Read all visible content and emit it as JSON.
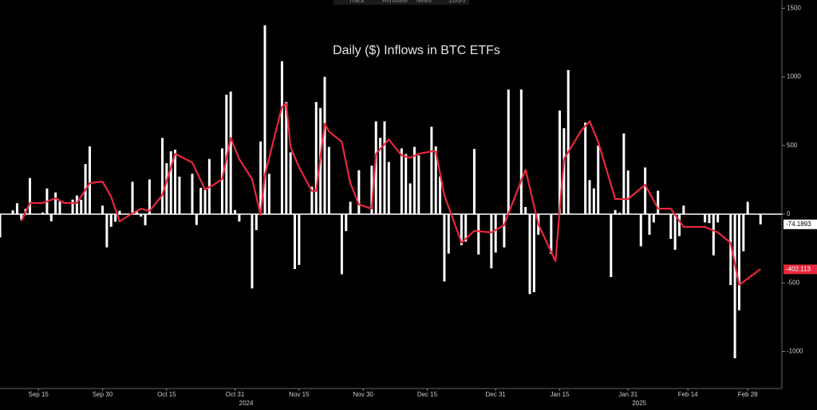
{
  "chart_data": {
    "type": "bar",
    "title": "Daily ($) Inflows in BTC ETFs",
    "toolbar": [
      "Track",
      "Annotate",
      "News",
      "Zoom"
    ],
    "xlim": [
      6,
      189
    ],
    "xticks": [
      {
        "value": 15,
        "label": "Sep 15"
      },
      {
        "value": 30,
        "label": "Sep 30"
      },
      {
        "value": 45,
        "label": "Oct 15"
      },
      {
        "value": 61,
        "label": "Oct 31"
      },
      {
        "value": 76,
        "label": "Nov 15"
      },
      {
        "value": 91,
        "label": "Nov 30"
      },
      {
        "value": 106,
        "label": "Dec 15"
      },
      {
        "value": 122,
        "label": "Dec 31"
      },
      {
        "value": 137,
        "label": "Jan 15"
      },
      {
        "value": 153,
        "label": "Jan 31"
      },
      {
        "value": 167,
        "label": "Feb 14"
      },
      {
        "value": 181,
        "label": "Feb 28"
      }
    ],
    "xsublabels": [
      {
        "value": 61,
        "label": "2024"
      },
      {
        "value": 153,
        "label": "2025"
      }
    ],
    "ylim": [
      -1270,
      1560
    ],
    "yticks": [
      -1000,
      -500,
      0,
      500,
      1000,
      1500
    ],
    "series": [
      {
        "type": "bar",
        "color": "#ffffff",
        "last_value": -74.1893,
        "x": [
          6,
          9,
          10,
          11,
          12,
          13,
          16,
          17,
          18,
          19,
          20,
          23,
          24,
          25,
          26,
          27,
          30,
          31,
          32,
          33,
          34,
          37,
          38,
          39,
          40,
          41,
          44,
          45,
          46,
          47,
          48,
          51,
          52,
          53,
          54,
          55,
          58,
          59,
          60,
          61,
          62,
          65,
          66,
          67,
          68,
          69,
          72,
          73,
          74,
          75,
          76,
          79,
          80,
          81,
          82,
          83,
          86,
          87,
          88,
          90,
          93,
          94,
          95,
          96,
          97,
          100,
          101,
          102,
          103,
          104,
          107,
          108,
          109,
          110,
          111,
          114,
          115,
          117,
          118,
          121,
          122,
          124,
          125,
          128,
          129,
          130,
          131,
          132,
          135,
          136,
          137,
          138,
          139,
          143,
          144,
          145,
          146,
          149,
          150,
          151,
          152,
          153,
          156,
          157,
          158,
          159,
          160,
          163,
          164,
          165,
          166,
          171,
          172,
          173,
          174,
          177,
          178,
          179,
          180,
          181,
          184
        ],
        "values": [
          -170,
          28,
          80,
          -40,
          39,
          263,
          12,
          187,
          -52,
          158,
          92,
          106,
          136,
          105,
          365,
          494,
          62,
          -242,
          -92,
          -55,
          25,
          236,
          28,
          -18,
          -81,
          253,
          555,
          371,
          458,
          470,
          273,
          294,
          -79,
          192,
          188,
          402,
          479,
          870,
          893,
          30,
          -54,
          -541,
          -116,
          530,
          1376,
          294,
          1114,
          817,
          450,
          -400,
          -370,
          200,
          817,
          773,
          1000,
          490,
          -438,
          -123,
          90,
          320,
          353,
          676,
          556,
          676,
          380,
          479,
          438,
          224,
          490,
          428,
          637,
          494,
          275,
          -490,
          -287,
          -226,
          -200,
          475,
          -294,
          -395,
          -280,
          -242,
          908,
          908,
          52,
          -582,
          -568,
          -150,
          -290,
          5,
          755,
          626,
          1050,
          667,
          248,
          188,
          500,
          -458,
          30,
          10,
          588,
          318,
          -234,
          340,
          -150,
          -60,
          171,
          -180,
          -260,
          -160,
          62,
          -60,
          -65,
          -300,
          -60,
          -516,
          -1050,
          -700,
          -270,
          90,
          -74
        ]
      },
      {
        "type": "line",
        "color": "#e8283c",
        "last_value": -402.113,
        "x": [
          11,
          13,
          16,
          19,
          21,
          24,
          27,
          30,
          32,
          34,
          37,
          39,
          41,
          44,
          47,
          51,
          54,
          56,
          58,
          60,
          62,
          65,
          67,
          68,
          72,
          73,
          74,
          76,
          79,
          80,
          82,
          83,
          86,
          88,
          90,
          93,
          94,
          97,
          100,
          102,
          104,
          107,
          108,
          110,
          114,
          117,
          121,
          124,
          125,
          129,
          132,
          136,
          138,
          142,
          144,
          146,
          150,
          153,
          157,
          160,
          163,
          166,
          171,
          174,
          177,
          179,
          181,
          184
        ],
        "values": [
          -52,
          81,
          81,
          116,
          81,
          81,
          226,
          237,
          127,
          -52,
          6,
          40,
          23,
          139,
          440,
          376,
          180,
          214,
          255,
          556,
          400,
          255,
          -6,
          284,
          782,
          805,
          486,
          342,
          168,
          168,
          660,
          602,
          527,
          226,
          70,
          40,
          440,
          544,
          428,
          411,
          440,
          457,
          457,
          139,
          -208,
          -122,
          -133,
          -81,
          6,
          324,
          -75,
          -342,
          400,
          608,
          677,
          527,
          110,
          110,
          214,
          40,
          40,
          -93,
          -93,
          -133,
          -208,
          -515,
          -469,
          -400
        ]
      }
    ]
  }
}
